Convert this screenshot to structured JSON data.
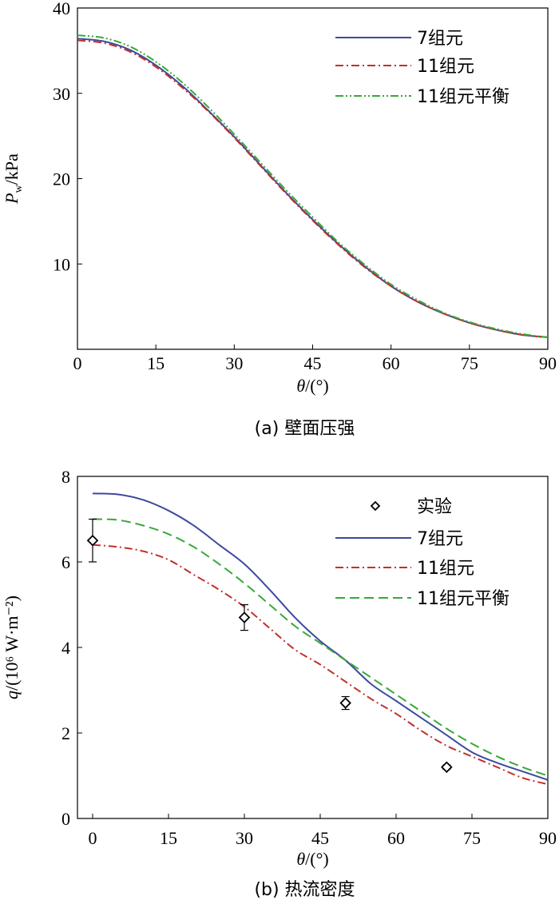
{
  "chart_data": [
    {
      "type": "line",
      "caption": "(a) 壁面压强",
      "xlabel_symbol": "θ",
      "xlabel_unit": "/(°)",
      "ylabel_symbol": "P",
      "ylabel_subscript": "w",
      "ylabel_unit": "/kPa",
      "xlim": [
        0,
        90
      ],
      "ylim": [
        0,
        40
      ],
      "xticks": [
        "0",
        "15",
        "30",
        "45",
        "60",
        "75",
        "90"
      ],
      "yticks": [
        "10",
        "20",
        "30",
        "40"
      ],
      "legend_position": "top-right",
      "x": [
        0,
        5,
        10,
        15,
        20,
        25,
        30,
        35,
        40,
        45,
        50,
        55,
        60,
        65,
        70,
        75,
        80,
        85,
        90
      ],
      "series": [
        {
          "name": "7组元",
          "color": "#3d4a9c",
          "dash": "solid",
          "values": [
            36.4,
            36.1,
            35.1,
            33.3,
            30.9,
            28.0,
            24.9,
            21.6,
            18.3,
            15.2,
            12.3,
            9.7,
            7.4,
            5.6,
            4.2,
            3.1,
            2.3,
            1.7,
            1.4
          ]
        },
        {
          "name": "11组元",
          "color": "#c0312b",
          "dash": "dashdot",
          "values": [
            36.2,
            35.9,
            34.9,
            33.1,
            30.7,
            27.9,
            24.8,
            21.5,
            18.2,
            15.1,
            12.2,
            9.6,
            7.4,
            5.6,
            4.2,
            3.1,
            2.3,
            1.7,
            1.4
          ]
        },
        {
          "name": "11组元平衡",
          "color": "#3aa83a",
          "dash": "dashdotdot",
          "values": [
            36.8,
            36.5,
            35.5,
            33.7,
            31.3,
            28.4,
            25.2,
            21.9,
            18.6,
            15.5,
            12.5,
            9.9,
            7.6,
            5.8,
            4.3,
            3.2,
            2.4,
            1.8,
            1.4
          ]
        }
      ]
    },
    {
      "type": "line",
      "caption": "(b) 热流密度",
      "xlabel_symbol": "θ",
      "xlabel_unit": "/(°)",
      "ylabel_symbol": "q",
      "ylabel_unit": "/(10⁶ W·m⁻²)",
      "xlim": [
        -3,
        90
      ],
      "ylim": [
        0,
        8
      ],
      "xticks": [
        "0",
        "15",
        "30",
        "45",
        "60",
        "75",
        "90"
      ],
      "yticks": [
        "0",
        "2",
        "4",
        "6",
        "8"
      ],
      "legend_position": "top-right",
      "x": [
        0,
        5,
        10,
        15,
        20,
        25,
        30,
        35,
        40,
        45,
        50,
        55,
        60,
        65,
        70,
        75,
        80,
        85,
        90
      ],
      "series": [
        {
          "name": "7组元",
          "color": "#3d4a9c",
          "dash": "solid",
          "values": [
            7.6,
            7.58,
            7.45,
            7.2,
            6.85,
            6.4,
            5.95,
            5.35,
            4.7,
            4.15,
            3.7,
            3.15,
            2.75,
            2.35,
            1.95,
            1.55,
            1.3,
            1.1,
            0.9
          ]
        },
        {
          "name": "11组元",
          "color": "#c0312b",
          "dash": "dashdot",
          "values": [
            6.4,
            6.35,
            6.25,
            6.05,
            5.7,
            5.35,
            4.95,
            4.45,
            3.95,
            3.6,
            3.2,
            2.8,
            2.45,
            2.05,
            1.7,
            1.45,
            1.2,
            0.95,
            0.8
          ]
        },
        {
          "name": "11组元平衡",
          "color": "#3aa83a",
          "dash": "dashed",
          "values": [
            7.0,
            6.98,
            6.85,
            6.65,
            6.35,
            5.95,
            5.5,
            5.0,
            4.5,
            4.1,
            3.7,
            3.3,
            2.9,
            2.5,
            2.1,
            1.75,
            1.45,
            1.2,
            1.0
          ]
        }
      ],
      "experiment": {
        "name": "实验",
        "points": [
          {
            "x": 0,
            "y": 6.5,
            "err": 0.5
          },
          {
            "x": 30,
            "y": 4.7,
            "err": 0.3
          },
          {
            "x": 50,
            "y": 2.7,
            "err": 0.15
          },
          {
            "x": 70,
            "y": 1.2,
            "err": 0.05
          }
        ]
      }
    }
  ]
}
